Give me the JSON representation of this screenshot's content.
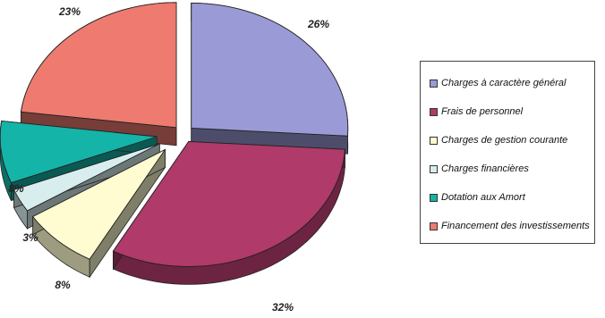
{
  "chart_data": {
    "type": "pie",
    "style": "3d-exploded",
    "legend_position": "right",
    "series": [
      {
        "name": "Charges à caractère général",
        "value": 26,
        "label": "26%",
        "color": "#9a9ad6"
      },
      {
        "name": "Frais de personnel",
        "value": 32,
        "label": "32%",
        "color": "#b03a6a"
      },
      {
        "name": "Charges de gestion courante",
        "value": 8,
        "label": "8%",
        "color": "#fefcd0"
      },
      {
        "name": "Charges financières",
        "value": 3,
        "label": "3%",
        "color": "#d8eeee"
      },
      {
        "name": "Dotation aux Amort",
        "value": 8,
        "label": "8%",
        "color": "#14b4a8"
      },
      {
        "name": "Financement des investissements",
        "value": 23,
        "label": "23%",
        "color": "#ee7a70"
      }
    ]
  }
}
